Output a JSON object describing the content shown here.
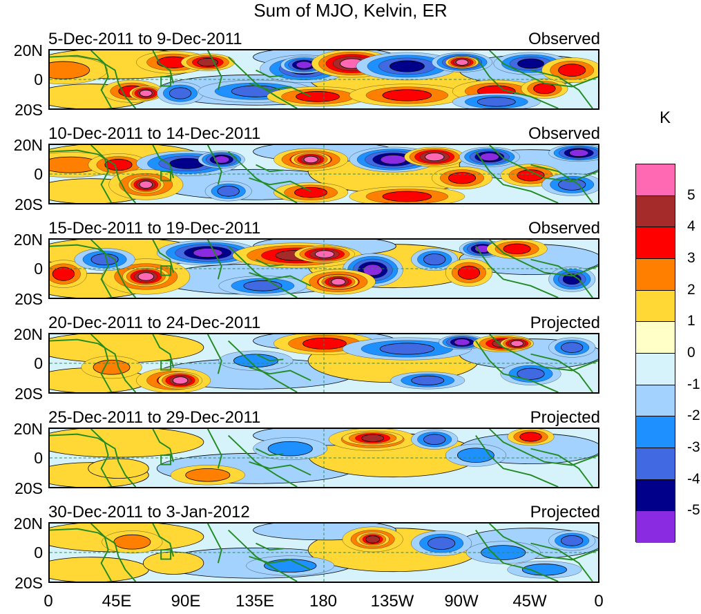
{
  "title": "Sum of MJO, Kelvin, ER",
  "panels": [
    {
      "date": "5-Dec-2011 to 9-Dec-2011",
      "status": "Observed"
    },
    {
      "date": "10-Dec-2011 to 14-Dec-2011",
      "status": "Observed"
    },
    {
      "date": "15-Dec-2011 to 19-Dec-2011",
      "status": "Observed"
    },
    {
      "date": "20-Dec-2011 to 24-Dec-2011",
      "status": "Projected"
    },
    {
      "date": "25-Dec-2011 to 29-Dec-2011",
      "status": "Projected"
    },
    {
      "date": "30-Dec-2011 to 3-Jan-2012",
      "status": "Projected"
    }
  ],
  "lat_labels": [
    "20N",
    "0",
    "20S"
  ],
  "lon_labels": [
    "0",
    "45E",
    "90E",
    "135E",
    "180",
    "135W",
    "90W",
    "45W",
    "0"
  ],
  "colorbar": {
    "unit": "K",
    "labels": [
      "5",
      "4",
      "3",
      "2",
      "1",
      "0",
      "-1",
      "-2",
      "-3",
      "-4",
      "-5"
    ],
    "colors": [
      "#ff69b4",
      "#a52a2a",
      "#ff0000",
      "#ff7f00",
      "#ffd835",
      "#ffffc8",
      "#d6f3fb",
      "#a3d2ff",
      "#1e90ff",
      "#4169e1",
      "#00008b",
      "#8a2be2"
    ]
  },
  "map_colors": {
    "land": "#228b22",
    "grid": "#2e8b57",
    "box": "#228b22"
  }
}
